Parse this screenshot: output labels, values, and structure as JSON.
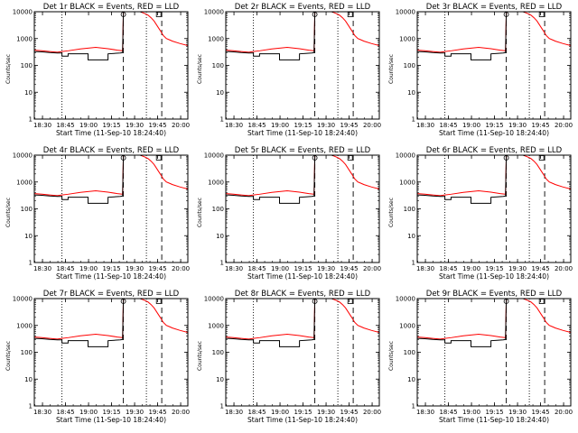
{
  "chart_data": {
    "type": "line",
    "layout": "3x3 grid",
    "ylabel": "Counts/sec",
    "xlabel": "Start Time (11-Sep-10 18:24:40)",
    "yscale": "log",
    "ylim": [
      1,
      10000
    ],
    "y_ticks": [
      1,
      10,
      100,
      1000,
      10000
    ],
    "y_tick_labels": [
      "1",
      "10",
      "100",
      "1000",
      "10000"
    ],
    "xlim_minutes": [
      0,
      100
    ],
    "x_ticks_minutes": [
      5.33,
      20.33,
      35.33,
      50.33,
      65.33,
      80.33,
      95.33
    ],
    "x_tick_labels": [
      "18:30",
      "18:45",
      "19:00",
      "19:15",
      "19:30",
      "19:45",
      "20:00"
    ],
    "legend": {
      "BLACK": "Events",
      "RED": "LLD"
    },
    "vlines": [
      {
        "minute": 18,
        "style": "dotted"
      },
      {
        "minute": 58,
        "style": "dashed"
      },
      {
        "minute": 73,
        "style": "dotted"
      },
      {
        "minute": 83,
        "style": "dashed"
      }
    ],
    "markers": [
      {
        "minute": 58,
        "shape": "circle"
      },
      {
        "minute": 81,
        "shape": "square"
      }
    ],
    "series": [
      {
        "name": "LLD",
        "color": "#ff0000",
        "x": [
          0,
          5,
          10,
          15,
          18,
          22,
          30,
          40,
          48,
          54,
          56,
          57.5,
          58,
          58.5,
          61,
          64,
          68,
          70,
          72,
          74,
          76,
          78,
          80,
          82,
          84,
          86,
          88,
          90,
          95,
          100
        ],
        "y": [
          370,
          350,
          330,
          310,
          330,
          350,
          410,
          470,
          420,
          370,
          360,
          350,
          10000,
          11000,
          12500,
          12000,
          10500,
          9500,
          8500,
          7500,
          6000,
          4500,
          3000,
          2000,
          1300,
          1000,
          900,
          800,
          650,
          550
        ]
      },
      {
        "name": "Events",
        "color": "#000000",
        "x": [
          0,
          5,
          10,
          15,
          18,
          18.01,
          22,
          22.01,
          35,
          35.01,
          48,
          48.01,
          52,
          56,
          57.5,
          58,
          58.5,
          61,
          64,
          68,
          70
        ],
        "y": [
          330,
          320,
          300,
          290,
          290,
          220,
          220,
          270,
          270,
          160,
          160,
          270,
          280,
          290,
          300,
          9000,
          11000,
          12500,
          12000,
          10500,
          9500
        ]
      }
    ],
    "panels": [
      {
        "title": "Det 1r BLACK = Events, RED = LLD"
      },
      {
        "title": "Det 2r BLACK = Events, RED = LLD"
      },
      {
        "title": "Det 3r BLACK = Events, RED = LLD"
      },
      {
        "title": "Det 4r BLACK = Events, RED = LLD"
      },
      {
        "title": "Det 5r BLACK = Events, RED = LLD"
      },
      {
        "title": "Det 6r BLACK = Events, RED = LLD"
      },
      {
        "title": "Det 7r BLACK = Events, RED = LLD"
      },
      {
        "title": "Det 8r BLACK = Events, RED = LLD"
      },
      {
        "title": "Det 9r BLACK = Events, RED = LLD"
      }
    ]
  }
}
